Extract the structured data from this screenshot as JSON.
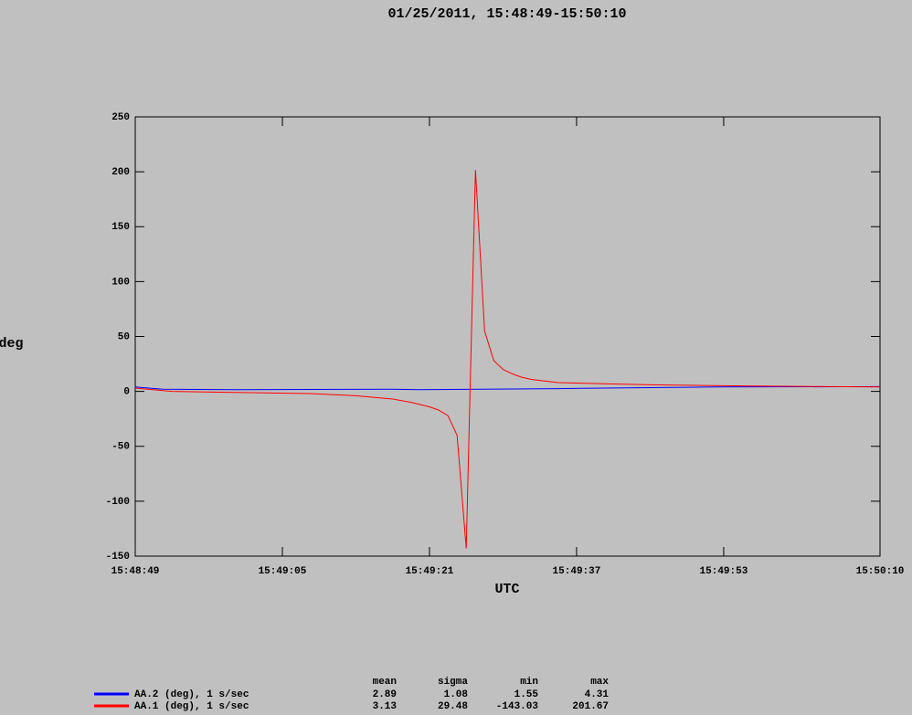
{
  "chart_data": {
    "type": "line",
    "title": "01/25/2011, 15:48:49-15:50:10",
    "y_label": "deg",
    "x_label": "UTC",
    "xlim": [
      "15:48:49",
      "15:50:10"
    ],
    "xticks": [
      "15:48:49",
      "15:49:05",
      "15:49:21",
      "15:49:37",
      "15:49:53",
      "15:50:10"
    ],
    "ylim": [
      -150,
      250
    ],
    "yticks": [
      -150,
      -100,
      -50,
      0,
      50,
      100,
      150,
      200,
      250
    ],
    "stat_headers": [
      "mean",
      "sigma",
      "min",
      "max"
    ],
    "series": [
      {
        "name": "AA.2 (deg), 1 s/sec",
        "color": "#0000ff",
        "x": [
          "15:48:49",
          "15:48:52",
          "15:49:00",
          "15:49:17",
          "15:49:20",
          "15:49:35",
          "15:49:40",
          "15:49:52",
          "15:50:10"
        ],
        "values": [
          4,
          2,
          1.55,
          2,
          1.6,
          2.5,
          3,
          4,
          4.31
        ],
        "stats": {
          "mean": 2.89,
          "sigma": 1.08,
          "min": 1.55,
          "max": 4.31
        }
      },
      {
        "name": "AA.1 (deg), 1 s/sec",
        "color": "#ff0000",
        "x": [
          "15:48:49",
          "15:48:53",
          "15:49:00",
          "15:49:08",
          "15:49:13",
          "15:49:17",
          "15:49:19",
          "15:49:21",
          "15:49:22",
          "15:49:23",
          "15:49:24",
          "15:49:25",
          "15:49:26",
          "15:49:27",
          "15:49:28",
          "15:49:29",
          "15:49:30",
          "15:49:31",
          "15:49:32",
          "15:49:33",
          "15:49:35",
          "15:49:40",
          "15:49:45",
          "15:49:55",
          "15:50:10"
        ],
        "values": [
          3,
          0,
          -1,
          -2,
          -4,
          -7,
          -10,
          -14,
          -17,
          -22,
          -40,
          -143.03,
          201.67,
          55,
          28,
          20,
          16,
          13,
          11,
          10,
          8,
          7,
          6,
          5,
          4
        ],
        "stats": {
          "mean": 3.13,
          "sigma": 29.48,
          "min": -143.03,
          "max": 201.67
        }
      }
    ]
  }
}
